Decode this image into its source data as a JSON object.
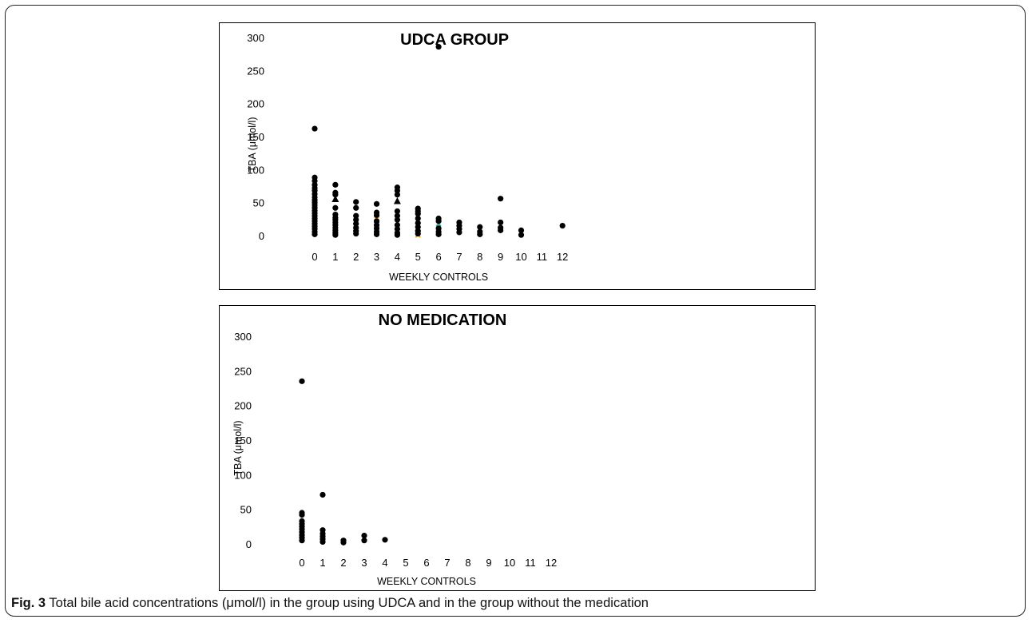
{
  "figure": {
    "caption_label": "Fig. 3",
    "caption_text": "Total bile acid concentrations (μmol/l) in the group using UDCA and in the group without the medication"
  },
  "chart_data": [
    {
      "type": "scatter",
      "title": "UDCA GROUP",
      "xlabel": "WEEKLY CONTROLS",
      "ylabel": "TBA (μmol/l)",
      "ylim": [
        0,
        300
      ],
      "yticks": [
        0,
        50,
        100,
        150,
        200,
        250,
        300
      ],
      "xlim": [
        0,
        12
      ],
      "xticks": [
        0,
        1,
        2,
        3,
        4,
        5,
        6,
        7,
        8,
        9,
        10,
        11,
        12
      ],
      "grid": false,
      "legend": "none",
      "points": [
        [
          0,
          162
        ],
        [
          0,
          88
        ],
        [
          0,
          83
        ],
        [
          0,
          77
        ],
        [
          0,
          72
        ],
        [
          0,
          68
        ],
        [
          0,
          63
        ],
        [
          0,
          58
        ],
        [
          0,
          54
        ],
        [
          0,
          50
        ],
        [
          0,
          46
        ],
        [
          0,
          42
        ],
        [
          0,
          38
        ],
        [
          0,
          34
        ],
        [
          0,
          30
        ],
        [
          0,
          26
        ],
        [
          0,
          22
        ],
        [
          0,
          18
        ],
        [
          0,
          14
        ],
        [
          0,
          10
        ],
        [
          0,
          6
        ],
        [
          0,
          2
        ],
        [
          1,
          77
        ],
        [
          1,
          65
        ],
        [
          1,
          62
        ],
        [
          1,
          42
        ],
        [
          1,
          32
        ],
        [
          1,
          27
        ],
        [
          1,
          24
        ],
        [
          1,
          20
        ],
        [
          1,
          16
        ],
        [
          1,
          12
        ],
        [
          1,
          8
        ],
        [
          1,
          4
        ],
        [
          1,
          1
        ],
        [
          2,
          51
        ],
        [
          2,
          42
        ],
        [
          2,
          30
        ],
        [
          2,
          24
        ],
        [
          2,
          18
        ],
        [
          2,
          12
        ],
        [
          2,
          7
        ],
        [
          2,
          3
        ],
        [
          3,
          48
        ],
        [
          3,
          35
        ],
        [
          3,
          31
        ],
        [
          3,
          22
        ],
        [
          3,
          16
        ],
        [
          3,
          11
        ],
        [
          3,
          6
        ],
        [
          3,
          2
        ],
        [
          4,
          73
        ],
        [
          4,
          68
        ],
        [
          4,
          62
        ],
        [
          4,
          37
        ],
        [
          4,
          30
        ],
        [
          4,
          24
        ],
        [
          4,
          16
        ],
        [
          4,
          10
        ],
        [
          4,
          4
        ],
        [
          4,
          1
        ],
        [
          5,
          41
        ],
        [
          5,
          37
        ],
        [
          5,
          33
        ],
        [
          5,
          26
        ],
        [
          5,
          19
        ],
        [
          5,
          13
        ],
        [
          5,
          7
        ],
        [
          5,
          3
        ],
        [
          6,
          286
        ],
        [
          6,
          26
        ],
        [
          6,
          22
        ],
        [
          6,
          11
        ],
        [
          6,
          6
        ],
        [
          6,
          2
        ],
        [
          7,
          20
        ],
        [
          7,
          15
        ],
        [
          7,
          10
        ],
        [
          7,
          5
        ],
        [
          8,
          13
        ],
        [
          8,
          6
        ],
        [
          8,
          2
        ],
        [
          9,
          56
        ],
        [
          9,
          20
        ],
        [
          9,
          12
        ],
        [
          9,
          8
        ],
        [
          10,
          8
        ],
        [
          10,
          1
        ],
        [
          12,
          15
        ]
      ],
      "triangles": [
        [
          1,
          55
        ],
        [
          4,
          52
        ]
      ],
      "colored_markers": [
        {
          "color": "#e8262b",
          "points": [
            [
              0,
              32
            ],
            [
              0,
              15
            ],
            [
              1,
              10
            ],
            [
              5,
              5
            ]
          ]
        },
        {
          "color": "#2b4fd1",
          "points": [
            [
              0,
              24
            ],
            [
              0,
              4
            ],
            [
              2,
              9
            ],
            [
              3,
              17
            ],
            [
              6,
              9
            ],
            [
              4,
              6
            ]
          ]
        },
        {
          "color": "#f29a1c",
          "points": [
            [
              0,
              20
            ],
            [
              1,
              3
            ],
            [
              3,
              25
            ],
            [
              4,
              3
            ],
            [
              5,
              1
            ]
          ]
        },
        {
          "color": "#1faa9e",
          "points": [
            [
              0,
              55
            ],
            [
              0,
              72
            ],
            [
              6,
              18
            ],
            [
              2,
              14
            ]
          ]
        },
        {
          "color": "#9b3fb3",
          "points": [
            [
              0,
              8
            ],
            [
              1,
              6
            ],
            [
              8,
              4
            ]
          ]
        }
      ]
    },
    {
      "type": "scatter",
      "title": "NO MEDICATION",
      "xlabel": "WEEKLY CONTROLS",
      "ylabel": "TBA (μmol/l)",
      "ylim": [
        0,
        300
      ],
      "yticks": [
        0,
        50,
        100,
        150,
        200,
        250,
        300
      ],
      "xlim": [
        0,
        12
      ],
      "xticks": [
        0,
        1,
        2,
        3,
        4,
        5,
        6,
        7,
        8,
        9,
        10,
        11,
        12
      ],
      "grid": false,
      "legend": "none",
      "points": [
        [
          0,
          235
        ],
        [
          0,
          45
        ],
        [
          0,
          42
        ],
        [
          0,
          33
        ],
        [
          0,
          29
        ],
        [
          0,
          25
        ],
        [
          0,
          21
        ],
        [
          0,
          17
        ],
        [
          0,
          13
        ],
        [
          0,
          9
        ],
        [
          0,
          5
        ],
        [
          1,
          71
        ],
        [
          1,
          20
        ],
        [
          1,
          15
        ],
        [
          1,
          11
        ],
        [
          1,
          7
        ],
        [
          1,
          3
        ],
        [
          2,
          5
        ],
        [
          2,
          2
        ],
        [
          3,
          12
        ],
        [
          3,
          5
        ],
        [
          4,
          6
        ]
      ],
      "triangles": [],
      "colored_markers": [
        {
          "color": "#e8262b",
          "points": [
            [
              0,
              19
            ]
          ]
        },
        {
          "color": "#1faa9e",
          "points": [
            [
              0,
              14
            ],
            [
              1,
              5
            ]
          ]
        },
        {
          "color": "#2b4fd1",
          "points": [
            [
              0,
              7
            ]
          ]
        }
      ]
    }
  ]
}
